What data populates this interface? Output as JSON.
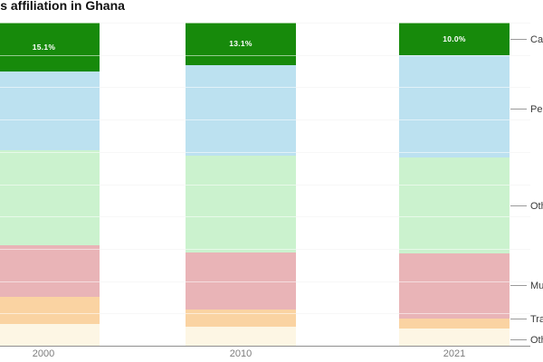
{
  "title": "Religious affiliation in Ghana",
  "x_axis": {
    "tick_labels": [
      "2000",
      "2010",
      "2021"
    ]
  },
  "right_edge_labels": [
    "Catholic",
    "Pentecostal",
    "Other Christians",
    "Muslim",
    "Traditional",
    "Other"
  ],
  "colors": {
    "background": "#ffffff",
    "axis_line": "#8f8f8f",
    "tick_label": "#7d7d7d",
    "catholic_green": "#178a0b",
    "pentecostal_blue": "#bce1f0",
    "other_christians_green": "#cbf2ce",
    "muslim_pink": "#e9b4b7",
    "traditional_orange": "#fad3a2",
    "other_cream": "#fdf6e4"
  },
  "chart_data": {
    "type": "bar",
    "subtype": "stacked-percentage-columns",
    "title": "Religious affiliation in Ghana",
    "categories": [
      "2000",
      "2010",
      "2021"
    ],
    "unit": "%",
    "ylim": [
      0,
      100
    ],
    "grid": true,
    "gridline_step_percent": 10,
    "legend_position": "right edge, truncated by viewport, with leader lines",
    "stack_order_top_to_bottom": [
      "Catholic",
      "Pentecostal",
      "Other Christians",
      "Muslim",
      "Traditional",
      "Other"
    ],
    "series": [
      {
        "name": "Catholic",
        "color": "#178a0b",
        "values": [
          15.1,
          13.1,
          10.0
        ],
        "value_labels": [
          "15.1%",
          "13.1%",
          "10.0%"
        ]
      },
      {
        "name": "Pentecostal",
        "color": "#bce1f0",
        "values": [
          24.4,
          28.1,
          31.8
        ],
        "value_labels": null
      },
      {
        "name": "Other Christians",
        "color": "#cbf2ce",
        "values": [
          29.5,
          30.0,
          29.7
        ],
        "value_labels": null
      },
      {
        "name": "Muslim",
        "color": "#e9b4b7",
        "values": [
          15.8,
          17.7,
          20.2
        ],
        "value_labels": null
      },
      {
        "name": "Traditional",
        "color": "#fad3a2",
        "values": [
          8.5,
          5.3,
          2.9
        ],
        "value_labels": null
      },
      {
        "name": "Other",
        "color": "#fdf6e4",
        "values": [
          6.7,
          5.8,
          5.4
        ],
        "value_labels": null
      }
    ]
  }
}
